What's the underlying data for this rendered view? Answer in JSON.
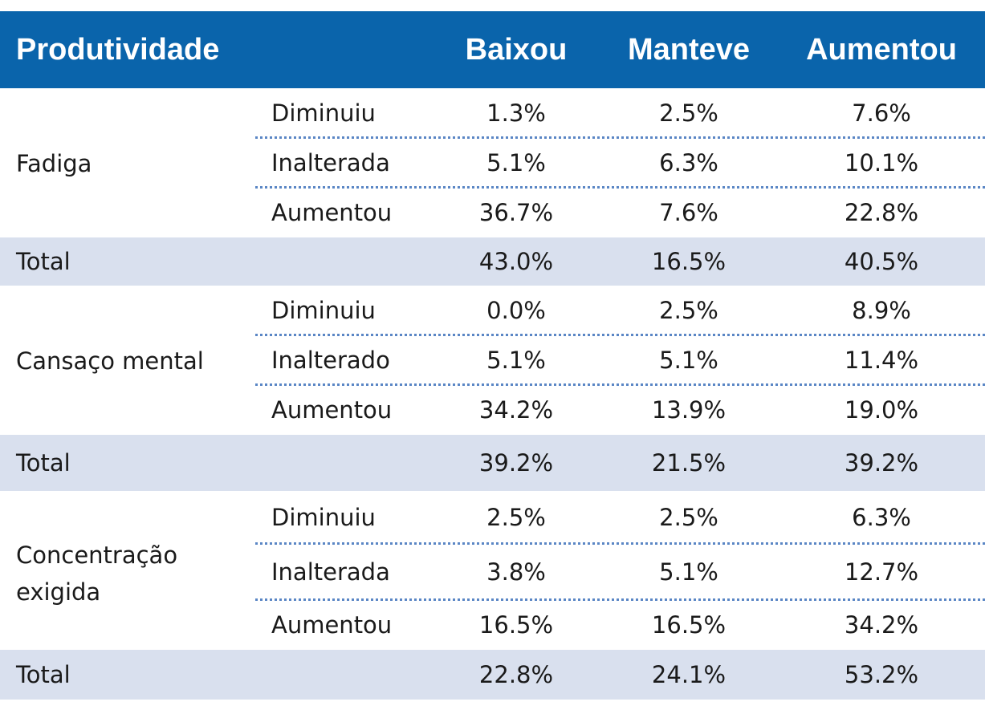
{
  "header": {
    "label": "Produtividade",
    "columns": [
      "Baixou",
      "Manteve",
      "Aumentou"
    ]
  },
  "groups": [
    {
      "name": "Fadiga",
      "rows": [
        {
          "label": "Diminuiu",
          "values": [
            "1.3%",
            "2.5%",
            "7.6%"
          ]
        },
        {
          "label": "Inalterada",
          "values": [
            "5.1%",
            "6.3%",
            "10.1%"
          ]
        },
        {
          "label": "Aumentou",
          "values": [
            "36.7%",
            "7.6%",
            "22.8%"
          ]
        }
      ],
      "total": {
        "label": "Total",
        "values": [
          "43.0%",
          "16.5%",
          "40.5%"
        ]
      }
    },
    {
      "name": "Cansaço mental",
      "rows": [
        {
          "label": "Diminuiu",
          "values": [
            "0.0%",
            "2.5%",
            "8.9%"
          ]
        },
        {
          "label": "Inalterado",
          "values": [
            "5.1%",
            "5.1%",
            "11.4%"
          ]
        },
        {
          "label": "Aumentou",
          "values": [
            "34.2%",
            "13.9%",
            "19.0%"
          ]
        }
      ],
      "total": {
        "label": "Total",
        "values": [
          "39.2%",
          "21.5%",
          "39.2%"
        ]
      }
    },
    {
      "name": "Concentração exigida",
      "name_lines": [
        "Concentração",
        "exigida"
      ],
      "rows": [
        {
          "label": "Diminuiu",
          "values": [
            "2.5%",
            "2.5%",
            "6.3%"
          ]
        },
        {
          "label": "Inalterada",
          "values": [
            "3.8%",
            "5.1%",
            "12.7%"
          ]
        },
        {
          "label": "Aumentou",
          "values": [
            "16.5%",
            "16.5%",
            "34.2%"
          ]
        }
      ],
      "total": {
        "label": "Total",
        "values": [
          "22.8%",
          "24.1%",
          "53.2%"
        ]
      }
    }
  ],
  "colors": {
    "header_bg": "#0a64ab",
    "total_bg": "#d9e0ee",
    "separator": "#5a86c5"
  }
}
